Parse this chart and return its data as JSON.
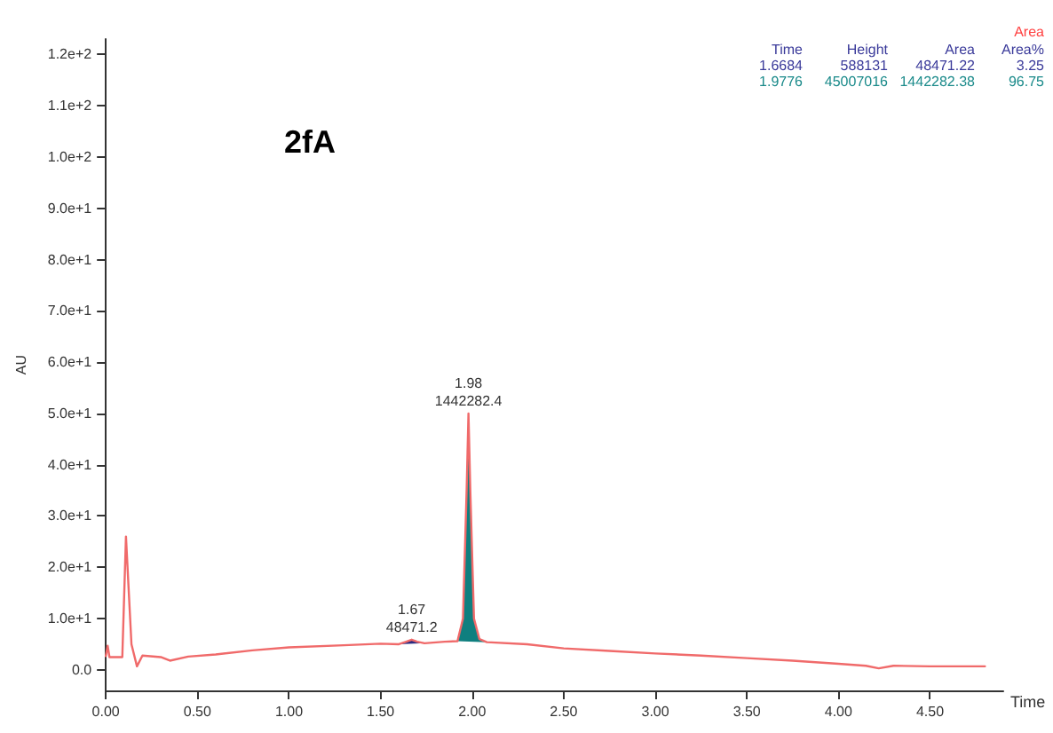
{
  "chart_data": {
    "type": "line",
    "title": "2fA",
    "xlabel": "Time",
    "ylabel": "AU",
    "xlim": [
      0,
      4.9
    ],
    "xticks": [
      {
        "value": 0,
        "label": "0.00"
      },
      {
        "value": 0.5,
        "label": "0.50"
      },
      {
        "value": 1,
        "label": "1.00"
      },
      {
        "value": 1.5,
        "label": "1.50"
      },
      {
        "value": 2,
        "label": "2.00"
      },
      {
        "value": 2.5,
        "label": "2.50"
      },
      {
        "value": 3,
        "label": "3.00"
      },
      {
        "value": 3.5,
        "label": "3.50"
      },
      {
        "value": 4,
        "label": "4.00"
      },
      {
        "value": 4.5,
        "label": "4.50"
      }
    ],
    "ylim": [
      -4,
      123
    ],
    "yticks": [
      {
        "value": 0,
        "label": "0.0"
      },
      {
        "value": 10,
        "label": "1.0e+1"
      },
      {
        "value": 20,
        "label": "2.0e+1"
      },
      {
        "value": 30,
        "label": "3.0e+1"
      },
      {
        "value": 40,
        "label": "4.0e+1"
      },
      {
        "value": 50,
        "label": "5.0e+1"
      },
      {
        "value": 60,
        "label": "6.0e+1"
      },
      {
        "value": 70,
        "label": "7.0e+1"
      },
      {
        "value": 80,
        "label": "8.0e+1"
      },
      {
        "value": 90,
        "label": "9.0e+1"
      },
      {
        "value": 100,
        "label": "1.0e+2"
      },
      {
        "value": 110,
        "label": "1.1e+2"
      },
      {
        "value": 120,
        "label": "1.2e+2"
      }
    ],
    "grid": false,
    "marker": "none",
    "line_style": "solid",
    "series": [
      {
        "type": "area",
        "color": "#2a2a80",
        "x": [
          1.6,
          1.64,
          1.67,
          1.7,
          1.74
        ],
        "values": [
          5.0,
          5.5,
          5.9,
          5.5,
          5.2
        ]
      },
      {
        "type": "area",
        "color": "#0f7f7f",
        "x": [
          1.92,
          1.95,
          1.97,
          1.98,
          1.99,
          2.01,
          2.04,
          2.08
        ],
        "values": [
          5.6,
          10,
          35,
          50,
          35,
          10,
          6,
          5.4
        ]
      },
      {
        "color": "#f06a6a",
        "x": [
          0,
          0.01,
          0.02,
          0.09,
          0.11,
          0.14,
          0.17,
          0.2,
          0.3,
          0.35,
          0.45,
          0.6,
          0.8,
          1.0,
          1.3,
          1.5,
          1.6,
          1.64,
          1.67,
          1.7,
          1.74,
          1.85,
          1.92,
          1.95,
          1.97,
          1.98,
          1.99,
          2.01,
          2.04,
          2.08,
          2.3,
          2.5,
          2.75,
          3.0,
          3.25,
          3.5,
          3.75,
          4.0,
          4.15,
          4.22,
          4.3,
          4.5,
          4.8
        ],
        "values": [
          2.7,
          4.7,
          2.5,
          2.5,
          26,
          5,
          0.7,
          2.8,
          2.5,
          1.8,
          2.6,
          3.0,
          3.8,
          4.4,
          4.8,
          5.1,
          5.0,
          5.5,
          5.9,
          5.5,
          5.2,
          5.5,
          5.6,
          10,
          35,
          50,
          35,
          10,
          6,
          5.4,
          5.0,
          4.2,
          3.7,
          3.2,
          2.8,
          2.3,
          1.8,
          1.2,
          0.8,
          0.3,
          0.8,
          0.7,
          0.7
        ]
      }
    ],
    "annotations": [
      {
        "text": "1.98\n1442282.4",
        "x": 1.98,
        "y": 50
      },
      {
        "text": "1.67\n48471.2",
        "x": 1.67,
        "y": 5.9
      },
      "Area",
      "Time",
      "Height",
      "Area",
      "Area%",
      "1.6684",
      "588131",
      "48471.22",
      "3.25",
      "1.9776",
      "45007016",
      "1442282.38",
      "96.75"
    ]
  }
}
